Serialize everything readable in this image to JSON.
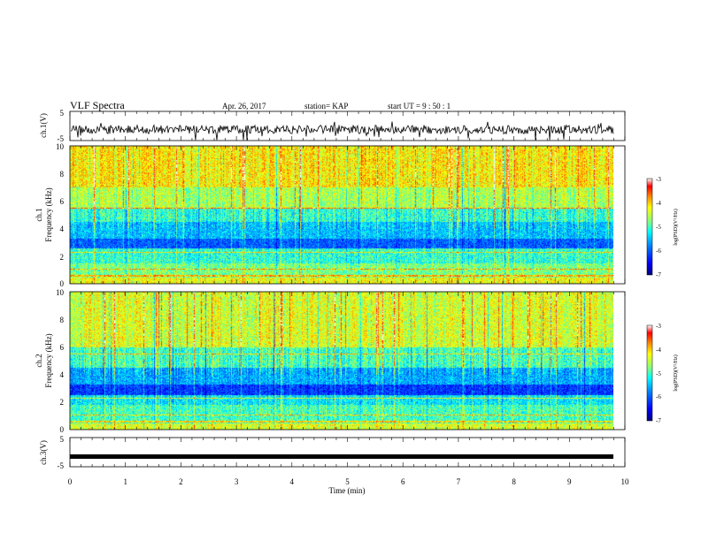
{
  "header": {
    "title": "VLF Spectra",
    "date": "Apr. 26, 2017",
    "station": "station= KAP",
    "start": "start  UT  =   9 : 50 : 1"
  },
  "chart_data": {
    "type": "heatmap",
    "x": {
      "label": "Time  (min)",
      "range": [
        0,
        10
      ],
      "ticks": [
        "0",
        "1",
        "2",
        "3",
        "4",
        "5",
        "6",
        "7",
        "8",
        "9",
        "10"
      ]
    },
    "panels": [
      {
        "id": "ch1_wave",
        "type": "line",
        "ylabel": "ch.1(V)",
        "ylim": [
          -5,
          5
        ],
        "yticks": [
          "5",
          "-5"
        ]
      },
      {
        "id": "ch1_spec",
        "type": "heatmap",
        "ylabel_top": "ch.1",
        "ylabel": "Frequency  (kHz)",
        "ylim": [
          0,
          10
        ],
        "yticks": [
          "0",
          "2",
          "4",
          "6",
          "8",
          "10"
        ],
        "colorbar": {
          "label": "log(PSD)(V²/Hz)",
          "range": [
            -7,
            -3
          ],
          "ticks": [
            "-3",
            "-4",
            "-5",
            "-6",
            "-7"
          ]
        },
        "bands": [
          {
            "f": [
              0.0,
              0.5
            ],
            "level": -4.3
          },
          {
            "f": [
              0.5,
              1.5
            ],
            "level": -4.8
          },
          {
            "f": [
              1.5,
              2.6
            ],
            "level": -5.1
          },
          {
            "f": [
              2.6,
              3.3
            ],
            "level": -6.0
          },
          {
            "f": [
              3.3,
              4.5
            ],
            "level": -5.5
          },
          {
            "f": [
              4.5,
              5.5
            ],
            "level": -5.1
          },
          {
            "f": [
              5.5,
              7.0
            ],
            "level": -4.6
          },
          {
            "f": [
              7.0,
              10.0
            ],
            "level": -4.2
          }
        ]
      },
      {
        "id": "ch2_spec",
        "type": "heatmap",
        "ylabel_top": "ch.2",
        "ylabel": "Frequency  (kHz)",
        "ylim": [
          0,
          10
        ],
        "yticks": [
          "0",
          "2",
          "4",
          "6",
          "8",
          "10"
        ],
        "colorbar": {
          "label": "log(PSD)(V²/Hz)",
          "range": [
            -7,
            -3
          ],
          "ticks": [
            "-3",
            "-4",
            "-5",
            "-6",
            "-7"
          ]
        },
        "bands": [
          {
            "f": [
              0.0,
              0.5
            ],
            "level": -4.4
          },
          {
            "f": [
              0.5,
              1.8
            ],
            "level": -5.0
          },
          {
            "f": [
              1.8,
              2.5
            ],
            "level": -5.3
          },
          {
            "f": [
              2.5,
              3.3
            ],
            "level": -6.2
          },
          {
            "f": [
              3.3,
              4.5
            ],
            "level": -5.6
          },
          {
            "f": [
              4.5,
              6.0
            ],
            "level": -5.0
          },
          {
            "f": [
              6.0,
              10.0
            ],
            "level": -4.4
          }
        ]
      },
      {
        "id": "ch3_wave",
        "type": "line",
        "ylabel": "ch.3(V)",
        "ylim": [
          -5,
          5
        ],
        "yticks": [
          "5",
          "-5"
        ],
        "constant_value": -1.5
      }
    ],
    "colors": {
      "line": "#000000",
      "frame": "#000000"
    },
    "colormap": [
      "#00007f",
      "#0000ff",
      "#007fff",
      "#00ffff",
      "#7fff7f",
      "#ffff00",
      "#ff7f00",
      "#ff0000",
      "#ffffff"
    ]
  }
}
